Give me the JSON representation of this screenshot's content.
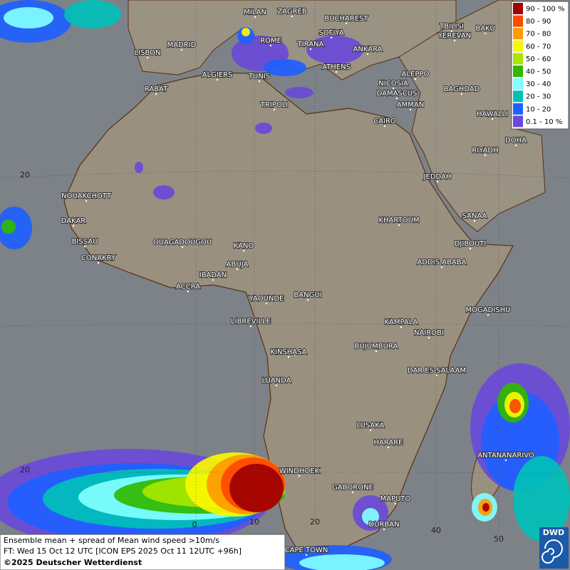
{
  "legend": [
    {
      "label": "90 - 100 %",
      "color": "#a00000"
    },
    {
      "label": "80 - 90",
      "color": "#ff4800"
    },
    {
      "label": "70 - 80",
      "color": "#ff9a00"
    },
    {
      "label": "60 - 70",
      "color": "#f8f800"
    },
    {
      "label": "50 - 60",
      "color": "#a8e600"
    },
    {
      "label": "40 - 50",
      "color": "#30b800"
    },
    {
      "label": "30 - 40",
      "color": "#80ffff"
    },
    {
      "label": "20 - 30",
      "color": "#00c0b8"
    },
    {
      "label": "10 - 20",
      "color": "#2060ff"
    },
    {
      "label": "0.1 - 10 %",
      "color": "#6a4ad8"
    }
  ],
  "cities": [
    "MILAN",
    "ZAGREB",
    "BUCHAREST",
    "TBILISI",
    "BAKU",
    "SOFIYA",
    "YEREVAN",
    "LISBON",
    "MADRID",
    "ROME",
    "TIRANA",
    "ANKARA",
    "ALGIERS",
    "TUNIS",
    "ATHENS",
    "ALEPPO",
    "RABAT",
    "NICOSIA",
    "BAGHDAD",
    "DAMASCUS",
    "TRIPOLI",
    "AMMAN",
    "HAWALLI",
    "CAIRO",
    "DOHA",
    "RIYADH",
    "JEDDAH",
    "NOUAKCHOTT",
    "DAKAR",
    "SANAA",
    "KHARTOUM",
    "BISSAU",
    "OUAGADOUGOU",
    "KANO",
    "DJIBOUTI",
    "CONAKRY",
    "ABUJA",
    "ADDIS ABABA",
    "IBADAN",
    "ACCRA",
    "YAOUNDE",
    "BANGUI",
    "MOGADISHU",
    "LIBREVILLE",
    "KAMPALA",
    "NAIROBI",
    "KINSHASA",
    "BUJUMBURA",
    "DAR ES SALAAM",
    "LUANDA",
    "LUSAKA",
    "HARARE",
    "ANTANANARIVO",
    "WINDHOEK",
    "GABORONE",
    "MAPUTO",
    "DURBAN",
    "CAPE TOWN"
  ],
  "graticule_labels": [
    "20",
    "20",
    "0",
    "10",
    "20",
    "40",
    "50"
  ],
  "caption": {
    "line1": "Ensemble mean + spread of Mean wind speed >10m/s",
    "line2": "FT: Wed 15 Oct 12 UTC [ICON EPS 2025 Oct 11 12UTC +96h]",
    "line3": "©2025 Deutscher Wetterdienst"
  },
  "logo": "DWD"
}
